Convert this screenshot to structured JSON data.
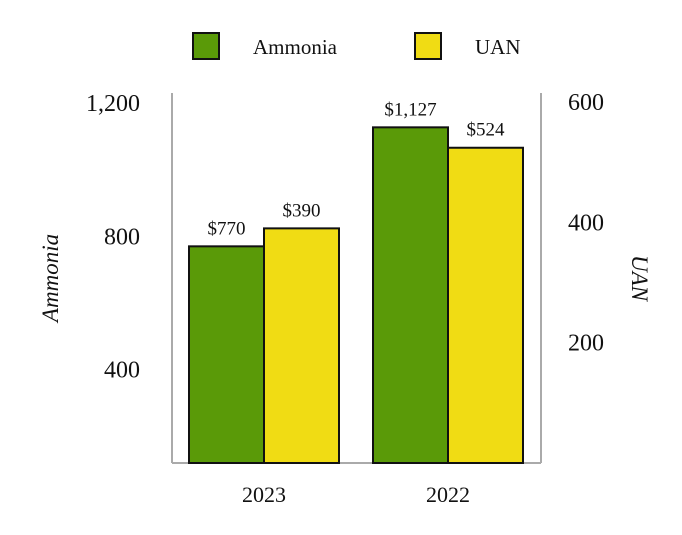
{
  "chart_data": {
    "type": "bar",
    "categories": [
      "2023",
      "2022"
    ],
    "series": [
      {
        "name": "Ammonia",
        "axis": "left",
        "color": "#5a9a08",
        "values": [
          770,
          1127
        ],
        "labels": [
          "$770",
          "$1,127"
        ]
      },
      {
        "name": "UAN",
        "axis": "right",
        "color": "#f0dc14",
        "values": [
          390,
          524
        ],
        "labels": [
          "$390",
          "$524"
        ]
      }
    ],
    "left_axis": {
      "label": "Ammonia",
      "ticks": [
        400,
        800,
        1200
      ],
      "tick_labels": [
        "400",
        "800",
        "1,200"
      ],
      "range": [
        120,
        1230
      ]
    },
    "right_axis": {
      "label": "UAN",
      "ticks": [
        200,
        400,
        600
      ],
      "tick_labels": [
        "200",
        "400",
        "600"
      ],
      "range": [
        0,
        615
      ]
    },
    "legend_position": "top-center",
    "grid": false
  }
}
